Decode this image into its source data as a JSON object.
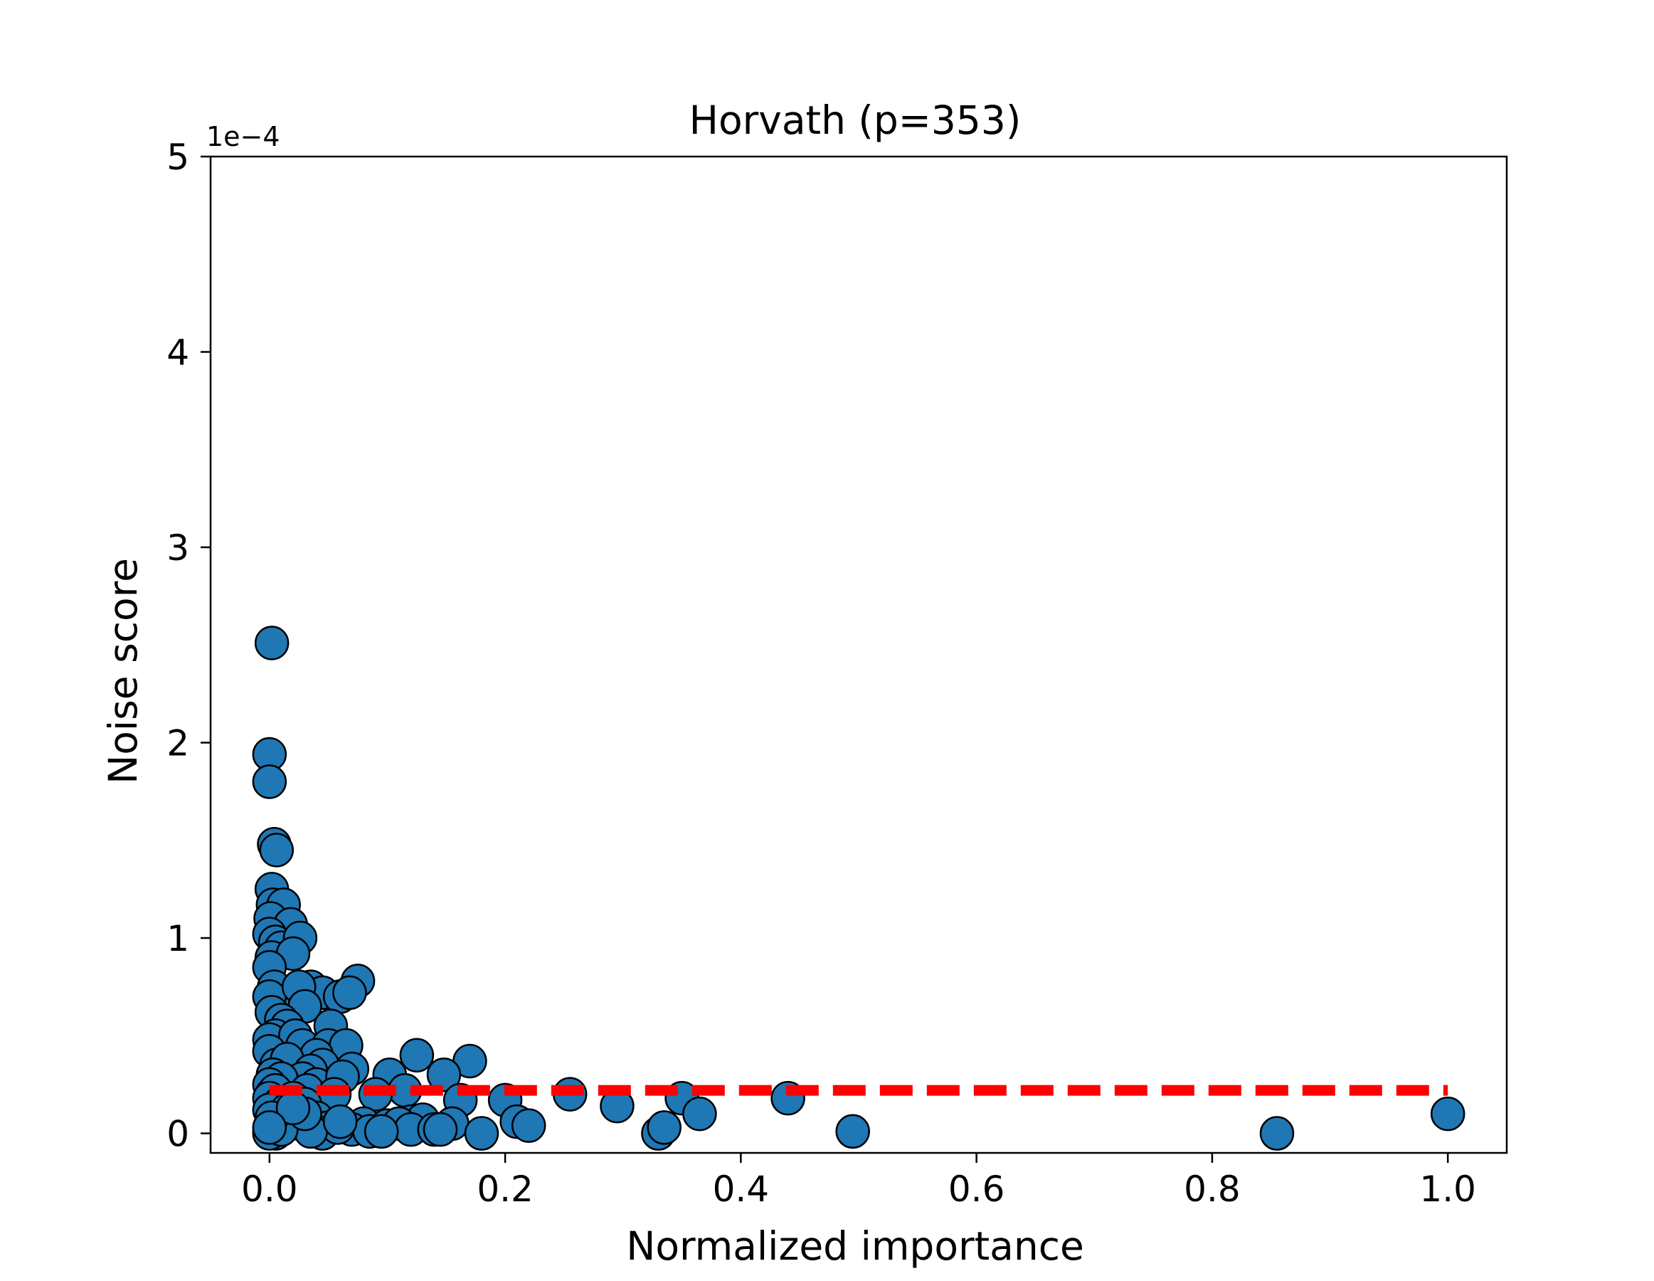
{
  "chart_data": {
    "type": "scatter",
    "title": "Horvath (p=353)",
    "xlabel": "Normalized importance",
    "ylabel": "Noise score",
    "y_offset_label": "1e−4",
    "xlim": [
      -0.05,
      1.05
    ],
    "ylim": [
      -0.1,
      5.0
    ],
    "x_ticks": [
      0.0,
      0.2,
      0.4,
      0.6,
      0.8,
      1.0
    ],
    "x_tick_labels": [
      "0.0",
      "0.2",
      "0.4",
      "0.6",
      "0.8",
      "1.0"
    ],
    "y_ticks": [
      0,
      1,
      2,
      3,
      4,
      5
    ],
    "y_tick_labels": [
      "0",
      "1",
      "2",
      "3",
      "4",
      "5"
    ],
    "marker_color": "#1f77b4",
    "marker_edge_color": "#000000",
    "threshold_color": "#ff0000",
    "threshold": {
      "x_start": 0.0,
      "x_end": 1.0,
      "y": 0.22
    },
    "grid": false,
    "series": [
      {
        "x": [
          0.002,
          0.0,
          0.0,
          0.004,
          0.006,
          0.002,
          0.003,
          0.012,
          0.001,
          0.018,
          0.0,
          0.005,
          0.01,
          0.002,
          0.026,
          0.02,
          0.0,
          0.004,
          0.008,
          0.075,
          0.035,
          0.045,
          0.06,
          0.068,
          0.0,
          0.025,
          0.002,
          0.03,
          0.01,
          0.015,
          0.052,
          0.005,
          0.0,
          0.022,
          0.028,
          0.05,
          0.065,
          0.0,
          0.04,
          0.006,
          0.015,
          0.003,
          0.045,
          0.035,
          0.028,
          0.07,
          0.17,
          0.125,
          0.04,
          0.01,
          0.0,
          0.002,
          0.005,
          0.102,
          0.148,
          0.032,
          0.062,
          0.02,
          0.0,
          0.008,
          0.115,
          0.055,
          0.09,
          0.03,
          0.255,
          0.35,
          0.44,
          0.2,
          0.0,
          0.012,
          0.005,
          0.01,
          0.04,
          0.08,
          0.1,
          0.12,
          0.162,
          0.21,
          0.295,
          0.365,
          0.002,
          0.05,
          0.07,
          0.025,
          0.0,
          0.22,
          0.13,
          0.015,
          0.045,
          0.005,
          0.11,
          0.155,
          0.33,
          0.495,
          0.855,
          0.335,
          0.18,
          0.12,
          0.14,
          0.058,
          0.035,
          0.085,
          0.0,
          1.0,
          0.01,
          0.002,
          0.03,
          0.06,
          0.02,
          0.0,
          0.095,
          0.145
        ],
        "y": [
          2.51,
          1.94,
          1.8,
          1.48,
          1.45,
          1.25,
          1.17,
          1.17,
          1.1,
          1.07,
          1.02,
          0.98,
          0.95,
          0.9,
          1.0,
          0.92,
          0.85,
          0.75,
          0.66,
          0.78,
          0.75,
          0.72,
          0.7,
          0.72,
          0.7,
          0.75,
          0.62,
          0.65,
          0.58,
          0.55,
          0.55,
          0.5,
          0.48,
          0.5,
          0.45,
          0.45,
          0.45,
          0.42,
          0.4,
          0.35,
          0.38,
          0.3,
          0.35,
          0.32,
          0.28,
          0.33,
          0.37,
          0.4,
          0.25,
          0.28,
          0.25,
          0.2,
          0.22,
          0.3,
          0.3,
          0.22,
          0.29,
          0.18,
          0.18,
          0.15,
          0.22,
          0.2,
          0.2,
          0.15,
          0.2,
          0.18,
          0.18,
          0.17,
          0.12,
          0.1,
          0.08,
          0.06,
          0.08,
          0.05,
          0.04,
          0.06,
          0.17,
          0.06,
          0.14,
          0.1,
          0.04,
          0.03,
          0.02,
          0.05,
          0.01,
          0.04,
          0.07,
          0.12,
          0.0,
          0.0,
          0.05,
          0.05,
          0.0,
          0.01,
          0.0,
          0.03,
          0.0,
          0.02,
          0.02,
          0.03,
          0.01,
          0.01,
          0.0,
          0.1,
          0.02,
          0.08,
          0.1,
          0.06,
          0.13,
          0.03,
          0.01,
          0.02
        ]
      }
    ]
  }
}
